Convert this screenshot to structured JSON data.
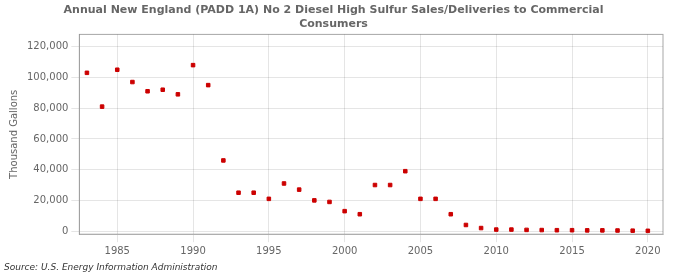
{
  "chart_data": {
    "type": "scatter",
    "title": "Annual New England (PADD 1A) No 2 Diesel High Sulfur Sales/Deliveries to Commercial\nConsumers",
    "y_label": "Thousand Gallons",
    "annotations": [
      "Source: U.S. Energy Information Administration"
    ],
    "x": [
      1983,
      1984,
      1985,
      1986,
      1987,
      1988,
      1989,
      1990,
      1991,
      1992,
      1993,
      1994,
      1995,
      1996,
      1997,
      1998,
      1999,
      2000,
      2001,
      2002,
      2003,
      2004,
      2005,
      2006,
      2007,
      2008,
      2009,
      2010,
      2011,
      2012,
      2013,
      2014,
      2015,
      2016,
      2017,
      2018,
      2019,
      2020
    ],
    "values": [
      103000,
      81000,
      105000,
      97000,
      91000,
      92000,
      89000,
      108000,
      95000,
      46000,
      25000,
      25000,
      21000,
      31000,
      27000,
      20000,
      19000,
      13000,
      11000,
      30000,
      30000,
      39000,
      21000,
      21000,
      11000,
      4000,
      2000,
      1000,
      1000,
      800,
      700,
      600,
      600,
      500,
      500,
      400,
      300,
      200
    ],
    "color": "#cc0000",
    "marker": "square",
    "xlim": [
      1982.5,
      2021
    ],
    "ylim": [
      -2000,
      128000
    ],
    "xticks": [
      1985,
      1990,
      1995,
      2000,
      2005,
      2010,
      2015,
      2020
    ],
    "yticks": [
      0,
      {
        "value": 20000,
        "label": "20,000"
      },
      {
        "value": 40000,
        "label": "40,000"
      },
      {
        "value": 60000,
        "label": "60,000"
      },
      {
        "value": 80000,
        "label": "80,000"
      },
      {
        "value": 100000,
        "label": "100,000"
      },
      {
        "value": 120000,
        "label": "120,000"
      }
    ],
    "grid": true
  }
}
